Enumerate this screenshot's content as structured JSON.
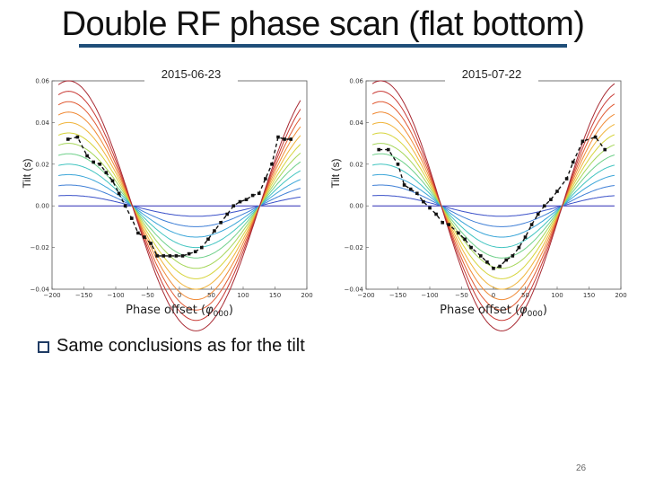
{
  "title": "Double RF phase scan (flat bottom)",
  "bullet": "Same conclusions as for the tilt",
  "page_number": "26",
  "chart_data": [
    {
      "type": "line",
      "panel_label": "2015-06-23",
      "xlabel": "Phase offset (φ000)",
      "xlabel_main": "Phase offset (",
      "xlabel_sym": "φ",
      "xlabel_sub": "000",
      "xlabel_end": ")",
      "ylabel": "Tilt (s)",
      "xlim": [
        -200,
        200
      ],
      "ylim": [
        -0.04,
        0.06
      ],
      "xticks": [
        "-200",
        "-150",
        "-100",
        "-50",
        "0",
        "50",
        "100",
        "150",
        "200"
      ],
      "yticks": [
        "-0.04",
        "-0.02",
        "0.00",
        "0.02",
        "0.04",
        "0.06"
      ],
      "model_curves": {
        "zero_crossings": [
          -74,
          126
        ],
        "amplitudes": [
          0.0,
          0.005,
          0.01,
          0.015,
          0.02,
          0.025,
          0.03,
          0.035,
          0.04,
          0.045,
          0.05,
          0.055,
          0.06
        ],
        "colors": [
          "#2b2bb5",
          "#3a50c8",
          "#3f7fd6",
          "#3aa5d8",
          "#41c4c0",
          "#6fd08a",
          "#a6d65a",
          "#d6d43c",
          "#f0b43a",
          "#f08a35",
          "#e05a33",
          "#c83a35",
          "#a82a33"
        ]
      },
      "measured": {
        "x": [
          -175,
          -160,
          -145,
          -135,
          -125,
          -115,
          -105,
          -95,
          -85,
          -75,
          -65,
          -55,
          -45,
          -35,
          -25,
          -15,
          -5,
          5,
          15,
          25,
          35,
          45,
          55,
          65,
          75,
          85,
          95,
          105,
          115,
          125,
          135,
          145,
          155,
          165,
          175
        ],
        "y": [
          0.032,
          0.033,
          0.024,
          0.021,
          0.02,
          0.016,
          0.012,
          0.006,
          0.0,
          -0.006,
          -0.013,
          -0.015,
          -0.018,
          -0.024,
          -0.024,
          -0.024,
          -0.024,
          -0.024,
          -0.023,
          -0.022,
          -0.02,
          -0.016,
          -0.012,
          -0.008,
          -0.004,
          0.0,
          0.002,
          0.003,
          0.005,
          0.006,
          0.013,
          0.02,
          0.033,
          0.032,
          0.032
        ]
      }
    },
    {
      "type": "line",
      "panel_label": "2015-07-22",
      "xlabel": "Phase offset (φ000)",
      "xlabel_main": "Phase offset (",
      "xlabel_sym": "φ",
      "xlabel_sub": "000",
      "xlabel_end": ")",
      "ylabel": "Tilt (s)",
      "xlim": [
        -200,
        200
      ],
      "ylim": [
        -0.04,
        0.06
      ],
      "xticks": [
        "-200",
        "-150",
        "-100",
        "-50",
        "0",
        "50",
        "100",
        "150",
        "200"
      ],
      "yticks": [
        "-0.04",
        "-0.02",
        "0.00",
        "0.02",
        "0.04",
        "0.06"
      ],
      "model_curves": {
        "zero_crossings": [
          -82,
          108
        ],
        "amplitudes": [
          0.0,
          0.005,
          0.01,
          0.015,
          0.02,
          0.025,
          0.03,
          0.035,
          0.04,
          0.045,
          0.05,
          0.055,
          0.06
        ],
        "colors": [
          "#2b2bb5",
          "#3a50c8",
          "#3f7fd6",
          "#3aa5d8",
          "#41c4c0",
          "#6fd08a",
          "#a6d65a",
          "#d6d43c",
          "#f0b43a",
          "#f08a35",
          "#e05a33",
          "#c83a35",
          "#a82a33"
        ]
      },
      "measured": {
        "x": [
          -180,
          -165,
          -150,
          -140,
          -130,
          -120,
          -110,
          -100,
          -90,
          -80,
          -70,
          -55,
          -45,
          -35,
          -20,
          -10,
          0,
          10,
          20,
          30,
          40,
          50,
          60,
          70,
          80,
          90,
          100,
          115,
          125,
          140,
          160,
          175
        ],
        "y": [
          0.027,
          0.027,
          0.02,
          0.01,
          0.008,
          0.006,
          0.002,
          -0.001,
          -0.004,
          -0.008,
          -0.009,
          -0.013,
          -0.016,
          -0.02,
          -0.024,
          -0.027,
          -0.03,
          -0.029,
          -0.026,
          -0.024,
          -0.02,
          -0.015,
          -0.009,
          -0.004,
          0.0,
          0.003,
          0.007,
          0.013,
          0.021,
          0.031,
          0.033,
          0.027
        ]
      }
    }
  ]
}
